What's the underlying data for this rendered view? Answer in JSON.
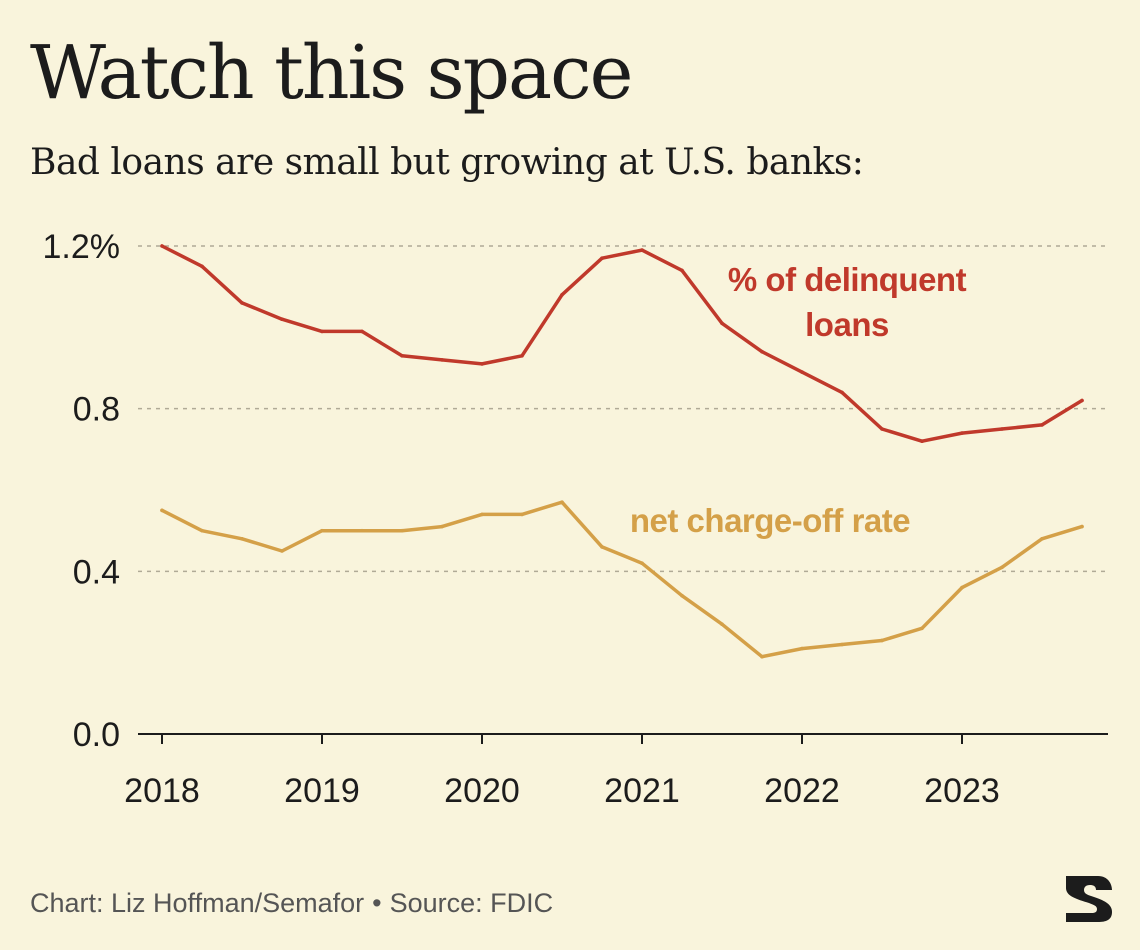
{
  "header": {
    "title": "Watch this space",
    "subtitle": "Bad loans are small but growing at U.S. banks:"
  },
  "footer": {
    "credit": "Chart: Liz Hoffman/Semafor",
    "separator": "•",
    "source": "Source: FDIC"
  },
  "colors": {
    "background": "#f9f4dc",
    "delinquent": "#c0392b",
    "chargeoff": "#d4a048",
    "grid": "#b0aa96",
    "axis": "#1c1c1c"
  },
  "chart_data": {
    "type": "line",
    "title": "",
    "xlabel": "",
    "ylabel": "",
    "xlim": [
      2018,
      2023.9
    ],
    "ylim": [
      0,
      1.2
    ],
    "x_ticks": [
      2018,
      2019,
      2020,
      2021,
      2022,
      2023
    ],
    "x_tick_labels": [
      "2018",
      "2019",
      "2020",
      "2021",
      "2022",
      "2023"
    ],
    "y_ticks": [
      0,
      0.4,
      0.8,
      1.2
    ],
    "y_tick_labels": [
      "0.0",
      "0.4",
      "0.8",
      "1.2%"
    ],
    "grid": "horizontal dashed at 0.4, 0.8, 1.2",
    "legend": "inline labels",
    "x": [
      2018.0,
      2018.25,
      2018.5,
      2018.75,
      2019.0,
      2019.25,
      2019.5,
      2019.75,
      2020.0,
      2020.25,
      2020.5,
      2020.75,
      2021.0,
      2021.25,
      2021.5,
      2021.75,
      2022.0,
      2022.25,
      2022.5,
      2022.75,
      2023.0,
      2023.25,
      2023.5,
      2023.75
    ],
    "series": [
      {
        "name": "% of delinquent loans",
        "label_lines": [
          "% of delinquent",
          "loans"
        ],
        "color": "#c0392b",
        "values": [
          1.2,
          1.15,
          1.06,
          1.02,
          0.99,
          0.99,
          0.93,
          0.92,
          0.91,
          0.93,
          1.08,
          1.17,
          1.19,
          1.14,
          1.01,
          0.94,
          0.89,
          0.84,
          0.75,
          0.72,
          0.74,
          0.75,
          0.76,
          0.82
        ]
      },
      {
        "name": "net charge-off rate",
        "label_lines": [
          "net charge-off rate"
        ],
        "color": "#d4a048",
        "values": [
          0.55,
          0.5,
          0.48,
          0.45,
          0.5,
          0.5,
          0.5,
          0.51,
          0.54,
          0.54,
          0.57,
          0.46,
          0.42,
          0.34,
          0.27,
          0.19,
          0.21,
          0.22,
          0.23,
          0.26,
          0.36,
          0.41,
          0.48,
          0.51
        ]
      }
    ]
  }
}
